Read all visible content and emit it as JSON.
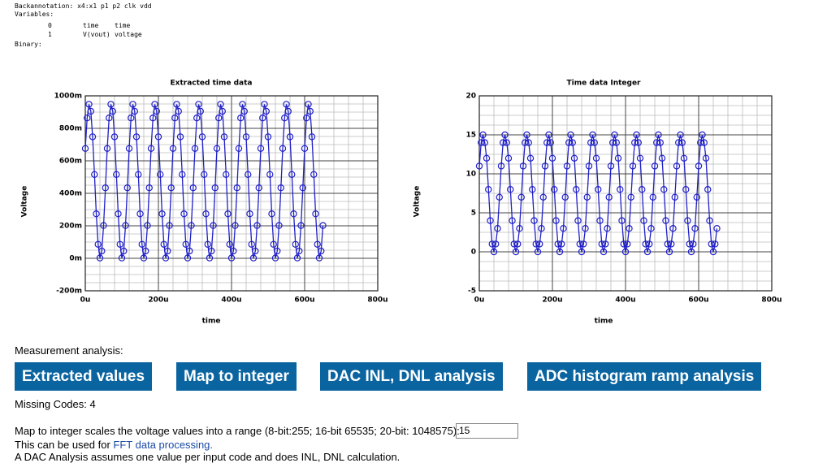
{
  "header": {
    "backannotation": "Backannotation: x4:x1 p1 p2 clk vdd",
    "variables_label": "Variables:",
    "variables": [
      [
        "0",
        "time",
        "time"
      ],
      [
        "1",
        "V(vout)",
        "voltage"
      ]
    ],
    "binary_label": "Binary:"
  },
  "chart_data": [
    {
      "type": "line",
      "title": "Extracted time data",
      "x_label": "time",
      "y_label": "Voltage",
      "color": "#2020c8",
      "markers": true,
      "grid": true,
      "xlim": [
        0,
        800
      ],
      "xticks": [
        {
          "value": 0,
          "label": "0u"
        },
        {
          "value": 200,
          "label": "200u"
        },
        {
          "value": 400,
          "label": "400u"
        },
        {
          "value": 600,
          "label": "600u"
        },
        {
          "value": 800,
          "label": "800u"
        }
      ],
      "ylim": [
        -200,
        1000
      ],
      "yticks": [
        {
          "value": -200,
          "label": "-200m"
        },
        {
          "value": 0,
          "label": "0m"
        },
        {
          "value": 200,
          "label": "200m"
        },
        {
          "value": 400,
          "label": "400m"
        },
        {
          "value": 600,
          "label": "600m"
        },
        {
          "value": 800,
          "label": "800m"
        },
        {
          "value": 1000,
          "label": "1000m"
        }
      ],
      "x": [
        0,
        5,
        10,
        15,
        20,
        25,
        30,
        35,
        40,
        45,
        50,
        55,
        60,
        65,
        70,
        75,
        80,
        85,
        90,
        95,
        100,
        105,
        110,
        115,
        120,
        125,
        130,
        135,
        140,
        145,
        150,
        155,
        160,
        165,
        170,
        175,
        180,
        185,
        190,
        195,
        200,
        205,
        210,
        215,
        220,
        225,
        230,
        235,
        240,
        245,
        250,
        255,
        260,
        265,
        270,
        275,
        280,
        285,
        290,
        295,
        300,
        305,
        310,
        315,
        320,
        325,
        330,
        335,
        340,
        345,
        350,
        355,
        360,
        365,
        370,
        375,
        380,
        385,
        390,
        395,
        400,
        405,
        410,
        415,
        420,
        425,
        430,
        435,
        440,
        445,
        450,
        455,
        460,
        465,
        470,
        475,
        480,
        485,
        490,
        495,
        500,
        505,
        510,
        515,
        520,
        525,
        530,
        535,
        540,
        545,
        550,
        555,
        560,
        565,
        570,
        575,
        580,
        585,
        590,
        595,
        600,
        605,
        610,
        615,
        620,
        625,
        630,
        635,
        640,
        645,
        650
      ],
      "values": [
        676,
        864,
        948,
        905,
        748,
        516,
        274,
        86,
        2,
        45,
        202,
        434,
        676,
        864,
        948,
        905,
        748,
        516,
        274,
        86,
        2,
        45,
        202,
        434,
        676,
        864,
        948,
        905,
        748,
        516,
        274,
        86,
        2,
        45,
        202,
        434,
        676,
        864,
        948,
        905,
        748,
        516,
        274,
        86,
        2,
        45,
        202,
        434,
        676,
        864,
        948,
        905,
        748,
        516,
        274,
        86,
        2,
        45,
        202,
        434,
        676,
        864,
        948,
        905,
        748,
        516,
        274,
        86,
        2,
        45,
        202,
        434,
        676,
        864,
        948,
        905,
        748,
        516,
        274,
        86,
        2,
        45,
        202,
        434,
        676,
        864,
        948,
        905,
        748,
        516,
        274,
        86,
        2,
        45,
        202,
        434,
        676,
        864,
        948,
        905,
        748,
        516,
        274,
        86,
        2,
        45,
        202,
        434,
        676,
        864,
        948,
        905,
        748,
        516,
        274,
        86,
        2,
        45,
        202,
        434,
        676,
        864,
        948,
        905,
        748,
        516,
        274,
        86,
        2,
        45,
        202
      ]
    },
    {
      "type": "line",
      "title": "Time data Integer",
      "x_label": "time",
      "y_label": "Voltage",
      "color": "#2020c8",
      "markers": true,
      "grid": true,
      "xlim": [
        0,
        800
      ],
      "xticks": [
        {
          "value": 0,
          "label": "0u"
        },
        {
          "value": 200,
          "label": "200u"
        },
        {
          "value": 400,
          "label": "400u"
        },
        {
          "value": 600,
          "label": "600u"
        },
        {
          "value": 800,
          "label": "800u"
        }
      ],
      "ylim": [
        -5,
        20
      ],
      "yticks": [
        -5,
        0,
        5,
        10,
        15,
        20
      ],
      "x": [
        0,
        5,
        10,
        15,
        20,
        25,
        30,
        35,
        40,
        45,
        50,
        55,
        60,
        65,
        70,
        75,
        80,
        85,
        90,
        95,
        100,
        105,
        110,
        115,
        120,
        125,
        130,
        135,
        140,
        145,
        150,
        155,
        160,
        165,
        170,
        175,
        180,
        185,
        190,
        195,
        200,
        205,
        210,
        215,
        220,
        225,
        230,
        235,
        240,
        245,
        250,
        255,
        260,
        265,
        270,
        275,
        280,
        285,
        290,
        295,
        300,
        305,
        310,
        315,
        320,
        325,
        330,
        335,
        340,
        345,
        350,
        355,
        360,
        365,
        370,
        375,
        380,
        385,
        390,
        395,
        400,
        405,
        410,
        415,
        420,
        425,
        430,
        435,
        440,
        445,
        450,
        455,
        460,
        465,
        470,
        475,
        480,
        485,
        490,
        495,
        500,
        505,
        510,
        515,
        520,
        525,
        530,
        535,
        540,
        545,
        550,
        555,
        560,
        565,
        570,
        575,
        580,
        585,
        590,
        595,
        600,
        605,
        610,
        615,
        620,
        625,
        630,
        635,
        640,
        645,
        650
      ],
      "values": [
        11,
        14,
        15,
        14,
        12,
        8,
        4,
        1,
        0,
        1,
        3,
        7,
        11,
        14,
        15,
        14,
        12,
        8,
        4,
        1,
        0,
        1,
        3,
        7,
        11,
        14,
        15,
        14,
        12,
        8,
        4,
        1,
        0,
        1,
        3,
        7,
        11,
        14,
        15,
        14,
        12,
        8,
        4,
        1,
        0,
        1,
        3,
        7,
        11,
        14,
        15,
        14,
        12,
        8,
        4,
        1,
        0,
        1,
        3,
        7,
        11,
        14,
        15,
        14,
        12,
        8,
        4,
        1,
        0,
        1,
        3,
        7,
        11,
        14,
        15,
        14,
        12,
        8,
        4,
        1,
        0,
        1,
        3,
        7,
        11,
        14,
        15,
        14,
        12,
        8,
        4,
        1,
        0,
        1,
        3,
        7,
        11,
        14,
        15,
        14,
        12,
        8,
        4,
        1,
        0,
        1,
        3,
        7,
        11,
        14,
        15,
        14,
        12,
        8,
        4,
        1,
        0,
        1,
        3,
        7,
        11,
        14,
        15,
        14,
        12,
        8,
        4,
        1,
        0,
        1,
        3
      ]
    }
  ],
  "measurement": {
    "label": "Measurement analysis:",
    "buttons": [
      "Extracted values",
      "Map to integer",
      "DAC INL, DNL analysis",
      "ADC histogram ramp analysis"
    ],
    "missing_codes": "Missing Codes: 4",
    "map_text": "Map to integer scales the voltage values into a range (8-bit:255; 16-bit 65535; 20-bit: 1048575):",
    "map_input": "15",
    "fft_prefix": "This can be used for",
    "fft_link": "FFT data processing.",
    "dac_note": "A DAC Analysis assumes one value per input code and does INL, DNL calculation."
  }
}
